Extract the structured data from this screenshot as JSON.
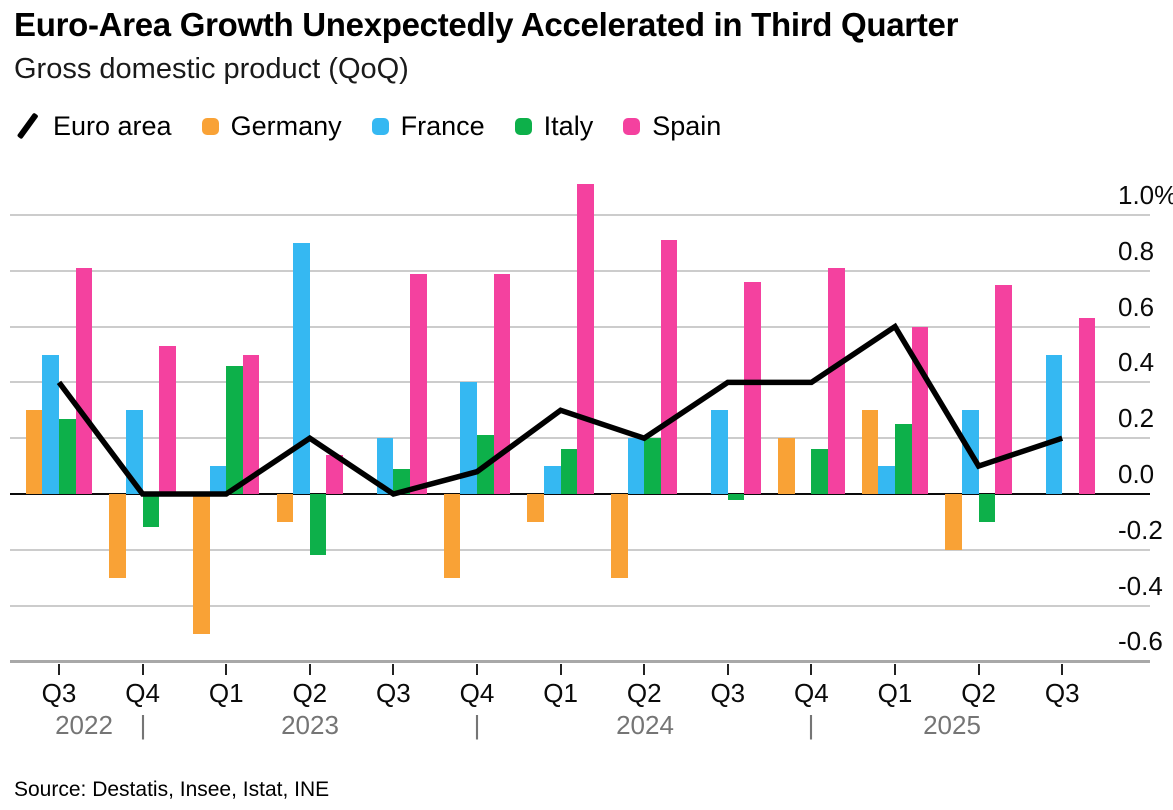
{
  "header": {
    "title": "Euro-Area Growth Unexpectedly Accelerated in Third Quarter",
    "subtitle": "Gross domestic product (QoQ)"
  },
  "legend": {
    "items": [
      {
        "label": "Euro area",
        "marker": "line-stroke",
        "color": "#000000"
      },
      {
        "label": "Germany",
        "marker": "square",
        "color": "#F9A236"
      },
      {
        "label": "France",
        "marker": "square",
        "color": "#35B8F2"
      },
      {
        "label": "Italy",
        "marker": "square",
        "color": "#0DB04A"
      },
      {
        "label": "Spain",
        "marker": "square",
        "color": "#F4419F"
      }
    ]
  },
  "chart_data": {
    "type": "bar+line",
    "title": "Euro-Area Growth Unexpectedly Accelerated in Third Quarter",
    "subtitle": "Gross domestic product (QoQ)",
    "categories": [
      "Q3 2022",
      "Q4 2022",
      "Q1 2023",
      "Q2 2023",
      "Q3 2023",
      "Q4 2023",
      "Q1 2024",
      "Q2 2024",
      "Q3 2024",
      "Q4 2024",
      "Q1 2025",
      "Q2 2025",
      "Q3 2025"
    ],
    "x_tick_labels": [
      "Q3",
      "Q4",
      "Q1",
      "Q2",
      "Q3",
      "Q4",
      "Q1",
      "Q2",
      "Q3",
      "Q4",
      "Q1",
      "Q2",
      "Q3"
    ],
    "year_row": [
      {
        "text": "2022",
        "x": 84
      },
      {
        "text": "|",
        "x": 143
      },
      {
        "text": "2023",
        "x": 310
      },
      {
        "text": "|",
        "x": 477
      },
      {
        "text": "2024",
        "x": 645
      },
      {
        "text": "|",
        "x": 811
      },
      {
        "text": "2025",
        "x": 952
      }
    ],
    "series": [
      {
        "name": "Germany",
        "color": "#F9A236",
        "values": [
          0.3,
          -0.3,
          -0.5,
          -0.1,
          0,
          -0.3,
          -0.1,
          -0.3,
          0,
          0.2,
          0.3,
          -0.2,
          0
        ]
      },
      {
        "name": "France",
        "color": "#35B8F2",
        "values": [
          0.5,
          0.3,
          0.1,
          0.9,
          0.2,
          0.4,
          0.1,
          0.2,
          0.3,
          0,
          0.1,
          0.3,
          0.5
        ]
      },
      {
        "name": "Italy",
        "color": "#0DB04A",
        "values": [
          0.27,
          -0.12,
          0.46,
          -0.22,
          0.09,
          0.21,
          0.16,
          0.2,
          -0.02,
          0.16,
          0.25,
          -0.1,
          0
        ]
      },
      {
        "name": "Spain",
        "color": "#F4419F",
        "values": [
          0.81,
          0.53,
          0.5,
          0.14,
          0.79,
          0.79,
          1.11,
          0.91,
          0.76,
          0.81,
          0.6,
          0.75,
          0.63
        ]
      }
    ],
    "line_series": {
      "name": "Euro area",
      "color": "#000000",
      "values": [
        0.4,
        0,
        0,
        0.2,
        0,
        0.08,
        0.3,
        0.2,
        0.4,
        0.4,
        0.6,
        0.1,
        0.2
      ]
    },
    "y_axis": {
      "unit": "%",
      "ticks": [
        {
          "v": 1.0,
          "label": "1.0%"
        },
        {
          "v": 0.8,
          "label": "0.8"
        },
        {
          "v": 0.6,
          "label": "0.6"
        },
        {
          "v": 0.4,
          "label": "0.4"
        },
        {
          "v": 0.2,
          "label": "0.2"
        },
        {
          "v": 0.0,
          "label": "0.0"
        },
        {
          "v": -0.2,
          "label": "-0.2"
        },
        {
          "v": -0.4,
          "label": "-0.4"
        },
        {
          "v": -0.6,
          "label": "-0.6"
        }
      ],
      "ylim": [
        -0.68,
        1.12
      ]
    },
    "grid": true,
    "legend_position": "top"
  },
  "source": "Source: Destatis, Insee, Istat, INE"
}
